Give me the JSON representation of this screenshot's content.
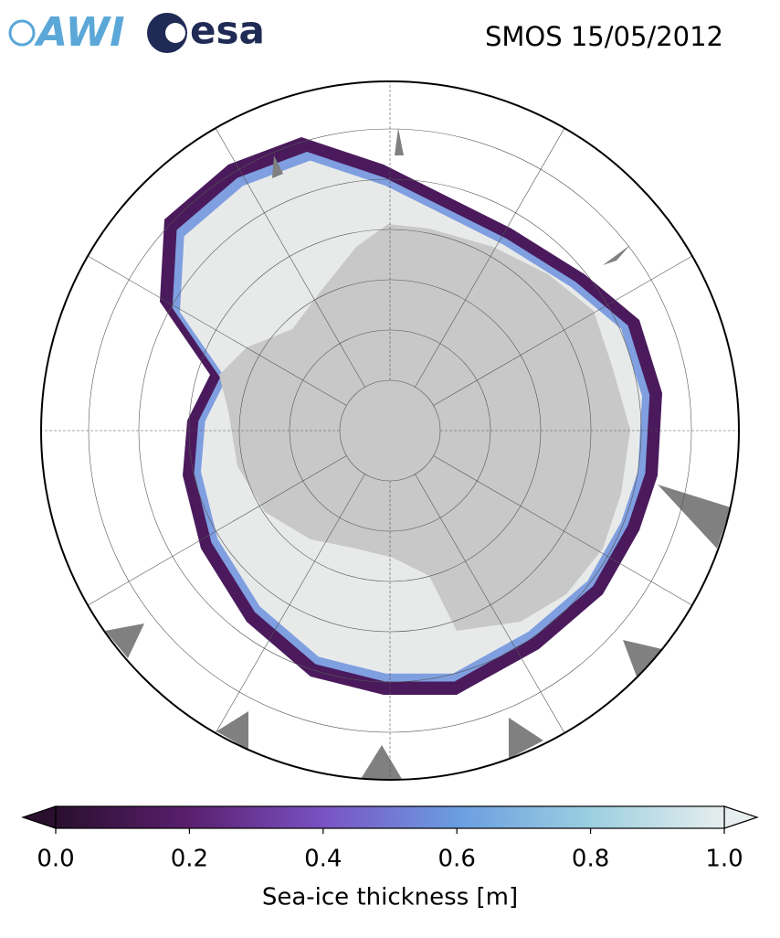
{
  "header": {
    "logos": [
      "AWI",
      "esa"
    ],
    "title": "SMOS 15/05/2012"
  },
  "colorbar": {
    "label": "Sea-ice thickness [m]",
    "lim": [
      0,
      1
    ],
    "ticks": [
      {
        "value": 0,
        "label": "0.0"
      },
      {
        "value": 0.2,
        "label": "0.2"
      },
      {
        "value": 0.4,
        "label": "0.4"
      },
      {
        "value": 0.6,
        "label": "0.6"
      },
      {
        "value": 0.8,
        "label": "0.8"
      },
      {
        "value": 1,
        "label": "1.0"
      }
    ],
    "colors": [
      "#2a0f2e",
      "#5a1f6e",
      "#7a52c4",
      "#6a9de0",
      "#9ccfe0",
      "#e6eeee"
    ]
  }
}
